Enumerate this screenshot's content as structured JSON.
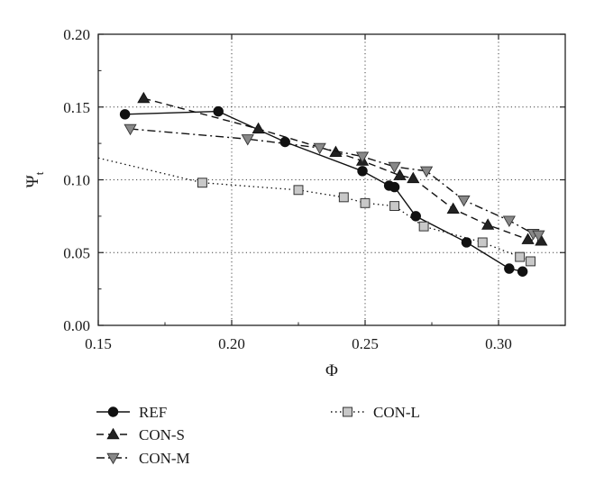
{
  "chart_data": {
    "type": "line",
    "xlabel": "Φ",
    "ylabel_main": "Ψ",
    "ylabel_sub": "t",
    "xlim": [
      0.15,
      0.325
    ],
    "ylim": [
      0.0,
      0.2
    ],
    "xticks": [
      "0.15",
      "0.20",
      "0.25",
      "0.30"
    ],
    "yticks": [
      "0.00",
      "0.05",
      "0.10",
      "0.15",
      "0.20"
    ],
    "grid": "dotted, at major ticks",
    "legend_position": "below plot",
    "series": [
      {
        "name": "REF",
        "line": "solid",
        "marker": "circle",
        "marker_fill": "#111111",
        "points": [
          [
            0.16,
            0.145
          ],
          [
            0.195,
            0.147
          ],
          [
            0.22,
            0.126
          ],
          [
            0.249,
            0.106
          ],
          [
            0.259,
            0.096
          ],
          [
            0.261,
            0.095
          ],
          [
            0.269,
            0.075
          ],
          [
            0.288,
            0.057
          ],
          [
            0.304,
            0.039
          ],
          [
            0.309,
            0.037
          ]
        ]
      },
      {
        "name": "CON-S",
        "line": "dashed",
        "marker": "triangle-up",
        "marker_fill": "#222222",
        "points": [
          [
            0.167,
            0.156
          ],
          [
            0.21,
            0.135
          ],
          [
            0.239,
            0.119
          ],
          [
            0.249,
            0.113
          ],
          [
            0.263,
            0.103
          ],
          [
            0.268,
            0.101
          ],
          [
            0.283,
            0.08
          ],
          [
            0.296,
            0.069
          ],
          [
            0.311,
            0.059
          ],
          [
            0.316,
            0.058
          ]
        ]
      },
      {
        "name": "CON-M",
        "line": "dashdot",
        "marker": "triangle-down",
        "marker_fill": "#888888",
        "points": [
          [
            0.162,
            0.135
          ],
          [
            0.206,
            0.128
          ],
          [
            0.233,
            0.122
          ],
          [
            0.249,
            0.116
          ],
          [
            0.261,
            0.109
          ],
          [
            0.273,
            0.106
          ],
          [
            0.287,
            0.086
          ],
          [
            0.304,
            0.072
          ],
          [
            0.313,
            0.063
          ],
          [
            0.315,
            0.062
          ]
        ]
      },
      {
        "name": "CON-L",
        "line": "dotted",
        "marker": "square",
        "marker_fill": "#c8c8c8",
        "line_extends_to": [
          0.15,
          0.115
        ],
        "points": [
          [
            0.189,
            0.098
          ],
          [
            0.225,
            0.093
          ],
          [
            0.242,
            0.088
          ],
          [
            0.25,
            0.084
          ],
          [
            0.261,
            0.082
          ],
          [
            0.272,
            0.068
          ],
          [
            0.294,
            0.057
          ],
          [
            0.308,
            0.047
          ],
          [
            0.312,
            0.044
          ]
        ]
      }
    ]
  }
}
